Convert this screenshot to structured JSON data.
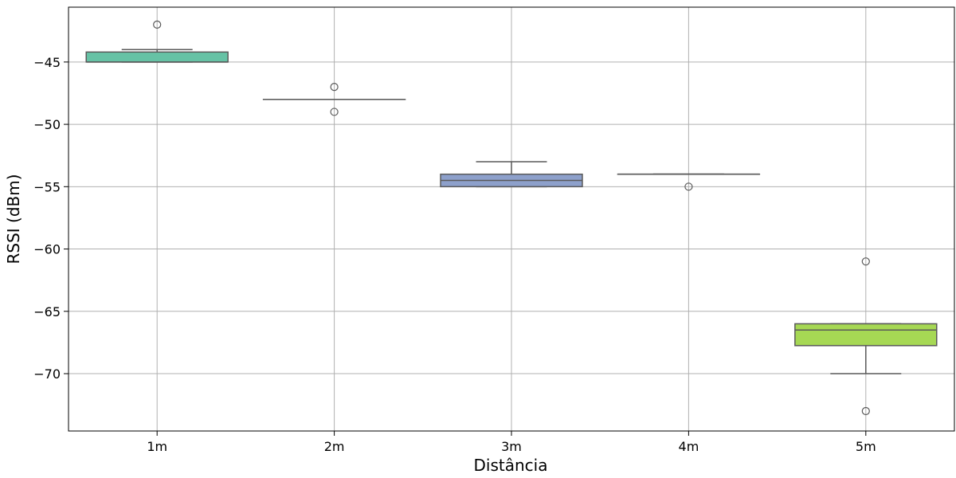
{
  "chart_data": {
    "type": "box",
    "title": "",
    "xlabel": "Distância",
    "ylabel": "RSSI (dBm)",
    "ylim": [
      -74.6,
      -40.6
    ],
    "yticks": [
      -45,
      -50,
      -55,
      -60,
      -65,
      -70
    ],
    "yticks_text": [
      "−45",
      "−50",
      "−55",
      "−60",
      "−65",
      "−70"
    ],
    "grid": true,
    "categories": [
      "1m",
      "2m",
      "3m",
      "4m",
      "5m"
    ],
    "boxes": [
      {
        "category": "1m",
        "q1": -45,
        "median": -45,
        "q3": -44.2,
        "whisker_low": -45,
        "whisker_high": -44,
        "outliers": [
          -42
        ],
        "color": "#66c2a5"
      },
      {
        "category": "2m",
        "q1": -48,
        "median": -48,
        "q3": -48,
        "whisker_low": -48,
        "whisker_high": -48,
        "outliers": [
          -47,
          -49
        ],
        "color": "#fc8d62"
      },
      {
        "category": "3m",
        "q1": -55,
        "median": -54.5,
        "q3": -54,
        "whisker_low": -55,
        "whisker_high": -53,
        "outliers": [],
        "color": "#8da0cb"
      },
      {
        "category": "4m",
        "q1": -54,
        "median": -54,
        "q3": -54,
        "whisker_low": -54,
        "whisker_high": -54,
        "outliers": [
          -55
        ],
        "color": "#e78ac3"
      },
      {
        "category": "5m",
        "q1": -67.75,
        "median": -66.5,
        "q3": -66,
        "whisker_low": -70,
        "whisker_high": -66,
        "outliers": [
          -61,
          -73
        ],
        "color": "#a6d854"
      }
    ]
  }
}
